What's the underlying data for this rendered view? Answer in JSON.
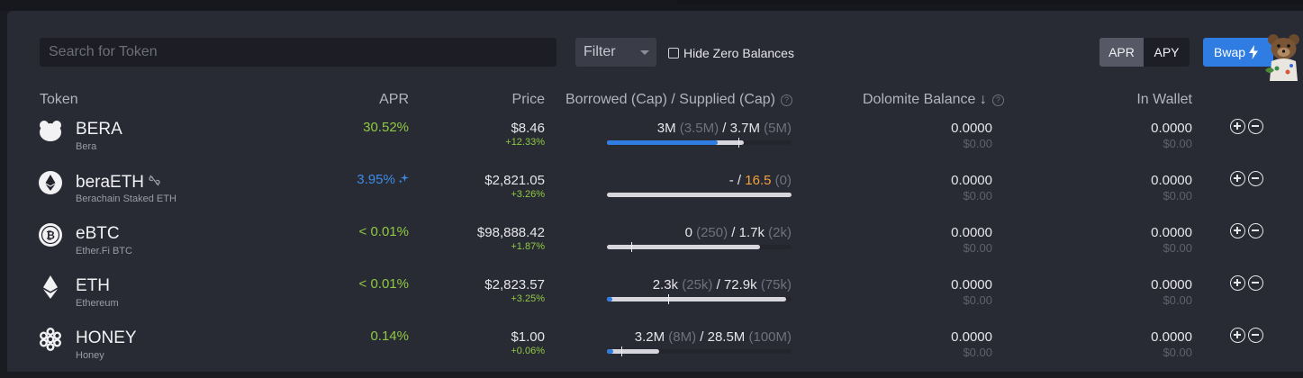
{
  "toolbar": {
    "search_placeholder": "Search for Token",
    "filter_label": "Filter",
    "hide_zero_label": "Hide Zero Balances",
    "hide_zero_checked": false,
    "apr_label": "APR",
    "apy_label": "APY",
    "selected_rate_mode": "APR",
    "bwap_label": "Bwap"
  },
  "columns": {
    "token": "Token",
    "apr": "APR",
    "price": "Price",
    "borrowed_supplied": "Borrowed (Cap) / Supplied (Cap)",
    "dolomite_balance": "Dolomite Balance",
    "sort_arrow": "↓",
    "in_wallet": "In Wallet"
  },
  "colors": {
    "accent": "#2f7de3",
    "positive": "#8fc942",
    "warning": "#f3a33b",
    "panel": "#282a34"
  },
  "rows": [
    {
      "symbol": "BERA",
      "name": "Bera",
      "icon": "bera-bear-icon",
      "apr": "30.52%",
      "apr_style": "green",
      "price": "$8.46",
      "change": "+12.33%",
      "borrowed": "3M",
      "borrow_cap": "(3.5M)",
      "supplied": "3.7M",
      "supply_cap": "(5M)",
      "supply_fraction": 0.74,
      "borrow_fraction": 0.6,
      "cap_marker": 0.71,
      "dolomite_balance": "0.0000",
      "dolomite_usd": "$0.00",
      "wallet_balance": "0.0000",
      "wallet_usd": "$0.00"
    },
    {
      "symbol": "beraETH",
      "name": "Berachain Staked ETH",
      "icon": "ethereum-icon",
      "badge_icon": "no-link-icon",
      "apr": "3.95%",
      "apr_style": "blue",
      "apr_icon": "sparkle-icon",
      "price": "$2,821.05",
      "change": "+3.26%",
      "borrowed": "-",
      "borrow_cap": "",
      "supplied": "16.5",
      "supply_cap": "(0)",
      "supply_fraction": 1.0,
      "borrow_fraction": 0,
      "cap_marker": null,
      "dolomite_balance": "0.0000",
      "dolomite_usd": "$0.00",
      "wallet_balance": "0.0000",
      "wallet_usd": "$0.00"
    },
    {
      "symbol": "eBTC",
      "name": "Ether.Fi BTC",
      "icon": "bitcoin-icon",
      "apr": "< 0.01%",
      "apr_style": "green",
      "price": "$98,888.42",
      "change": "+1.87%",
      "borrowed": "0",
      "borrow_cap": "(250)",
      "supplied": "1.7k",
      "supply_cap": "(2k)",
      "supply_fraction": 0.83,
      "borrow_fraction": 0,
      "cap_marker": 0.13,
      "dolomite_balance": "0.0000",
      "dolomite_usd": "$0.00",
      "wallet_balance": "0.0000",
      "wallet_usd": "$0.00"
    },
    {
      "symbol": "ETH",
      "name": "Ethereum",
      "icon": "ethereum-icon",
      "apr": "< 0.01%",
      "apr_style": "green",
      "price": "$2,823.57",
      "change": "+3.25%",
      "borrowed": "2.3k",
      "borrow_cap": "(25k)",
      "supplied": "72.9k",
      "supply_cap": "(75k)",
      "supply_fraction": 0.97,
      "borrow_fraction": 0.03,
      "cap_marker": 0.33,
      "dolomite_balance": "0.0000",
      "dolomite_usd": "$0.00",
      "wallet_balance": "0.0000",
      "wallet_usd": "$0.00"
    },
    {
      "symbol": "HONEY",
      "name": "Honey",
      "icon": "honeycomb-icon",
      "apr": "0.14%",
      "apr_style": "green",
      "price": "$1.00",
      "change": "+0.06%",
      "borrowed": "3.2M",
      "borrow_cap": "(8M)",
      "supplied": "28.5M",
      "supply_cap": "(100M)",
      "supply_fraction": 0.285,
      "borrow_fraction": 0.032,
      "cap_marker": 0.08,
      "dolomite_balance": "0.0000",
      "dolomite_usd": "$0.00",
      "wallet_balance": "0.0000",
      "wallet_usd": "$0.00"
    }
  ]
}
